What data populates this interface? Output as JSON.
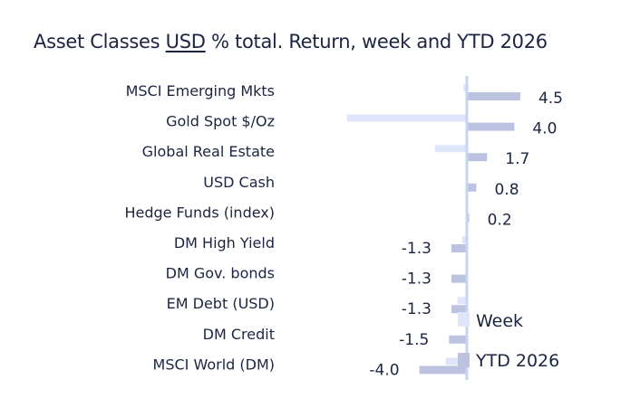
{
  "chart_data": {
    "type": "bar",
    "orientation": "horizontal",
    "title_parts": [
      "Asset Classes ",
      "USD",
      " % total. Return, week and YTD 2026"
    ],
    "categories": [
      "MSCI Emerging Mkts",
      "Gold Spot   $/Oz",
      "Global Real Estate",
      "USD Cash",
      "Hedge Funds (index)",
      "DM High Yield",
      "DM Gov. bonds",
      "EM Debt (USD)",
      "DM Credit",
      "MSCI World (DM)"
    ],
    "series": [
      {
        "name": "Week",
        "color": "#dfe6fb",
        "values": [
          -0.3,
          -10.1,
          -2.7,
          0.0,
          0.1,
          -0.4,
          0.0,
          -0.8,
          0.0,
          -1.8
        ]
      },
      {
        "name": "YTD 2026",
        "color": "#bcc3e0",
        "values": [
          4.5,
          4.0,
          1.7,
          0.8,
          0.2,
          -1.3,
          -1.3,
          -1.3,
          -1.5,
          -4.0
        ]
      }
    ],
    "data_labels": [
      "4.5",
      "4.0",
      "1.7",
      "0.8",
      "0.2",
      "-1.3",
      "-1.3",
      "-1.3",
      "-1.5",
      "-4.0"
    ],
    "axis_color": "#c5d6f4",
    "legend": "bottom-right, inside",
    "grid": false
  }
}
